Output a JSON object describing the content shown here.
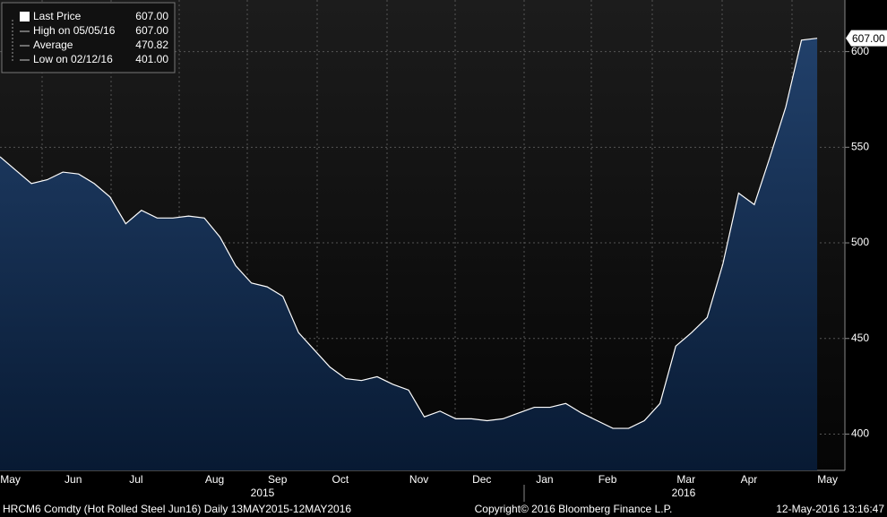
{
  "chart_data": {
    "type": "area",
    "series": [
      {
        "name": "Last Price",
        "color": "#ffffff",
        "values": [
          545,
          538,
          531,
          533,
          537,
          536,
          531,
          524,
          510,
          517,
          513,
          513,
          514,
          513,
          503,
          488,
          479,
          477,
          472,
          453,
          444,
          435,
          429,
          428,
          430,
          426,
          423,
          409,
          412,
          408,
          408,
          407,
          408,
          411,
          414,
          414,
          416,
          411,
          407,
          403,
          403,
          407,
          416,
          446,
          453,
          461,
          489,
          526,
          520,
          545,
          571,
          606,
          607,
          null
        ]
      }
    ],
    "categories": [
      null,
      "May",
      null,
      null,
      null,
      "Jun",
      null,
      null,
      null,
      "Jul",
      null,
      null,
      null,
      null,
      "Aug",
      null,
      null,
      null,
      "Sep",
      null,
      null,
      null,
      "Oct",
      null,
      null,
      null,
      null,
      "Nov",
      null,
      null,
      null,
      "Dec",
      null,
      null,
      null,
      "Jan",
      null,
      null,
      null,
      "Feb",
      null,
      null,
      null,
      null,
      "Mar",
      null,
      null,
      null,
      "Apr",
      null,
      null,
      null,
      null,
      "May"
    ],
    "years": [
      "2015",
      "2016"
    ],
    "ylim": [
      381,
      627
    ],
    "yticks": [
      400,
      450,
      500,
      550,
      600
    ],
    "grid": true,
    "legend": [
      {
        "name": "Last Price",
        "value": "607.00"
      },
      {
        "name": "High on 05/05/16",
        "value": "607.00"
      },
      {
        "name": "Average",
        "value": "470.82"
      },
      {
        "name": "Low on 02/12/16",
        "value": "401.00"
      }
    ],
    "footer": {
      "left": "HRCM6 Comdty (Hot Rolled Steel  Jun16)  Daily 13MAY2015-12MAY2016",
      "center": "Copyright© 2016 Bloomberg Finance L.P.",
      "right": "12-May-2016 13:16:47"
    }
  }
}
